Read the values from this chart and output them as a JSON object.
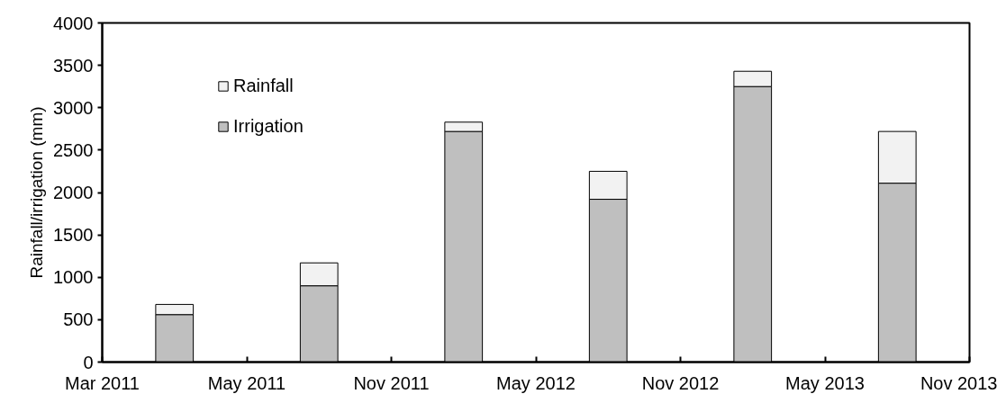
{
  "chart_data": {
    "type": "bar",
    "stacked": true,
    "ylabel": "Rainfall/irrigation (mm)",
    "categories": [
      null,
      null,
      null,
      null,
      null,
      null
    ],
    "annotations": [
      "Mar 2011",
      "May 2011",
      "Nov 2011",
      "May 2012",
      "Nov 2012",
      "May 2013",
      "Nov 2013"
    ],
    "ylim": [
      0,
      4000
    ],
    "yticks": [
      0,
      500,
      1000,
      1500,
      2000,
      2500,
      3000,
      3500,
      4000
    ],
    "series": [
      {
        "name": "Irrigation",
        "color": "#bfbfbf",
        "values": [
          560,
          900,
          2720,
          1920,
          3250,
          2110
        ]
      },
      {
        "name": "Rainfall",
        "color": "#f2f2f2",
        "values": [
          120,
          270,
          110,
          330,
          180,
          610
        ]
      }
    ],
    "legend": "top left",
    "grid": false
  }
}
